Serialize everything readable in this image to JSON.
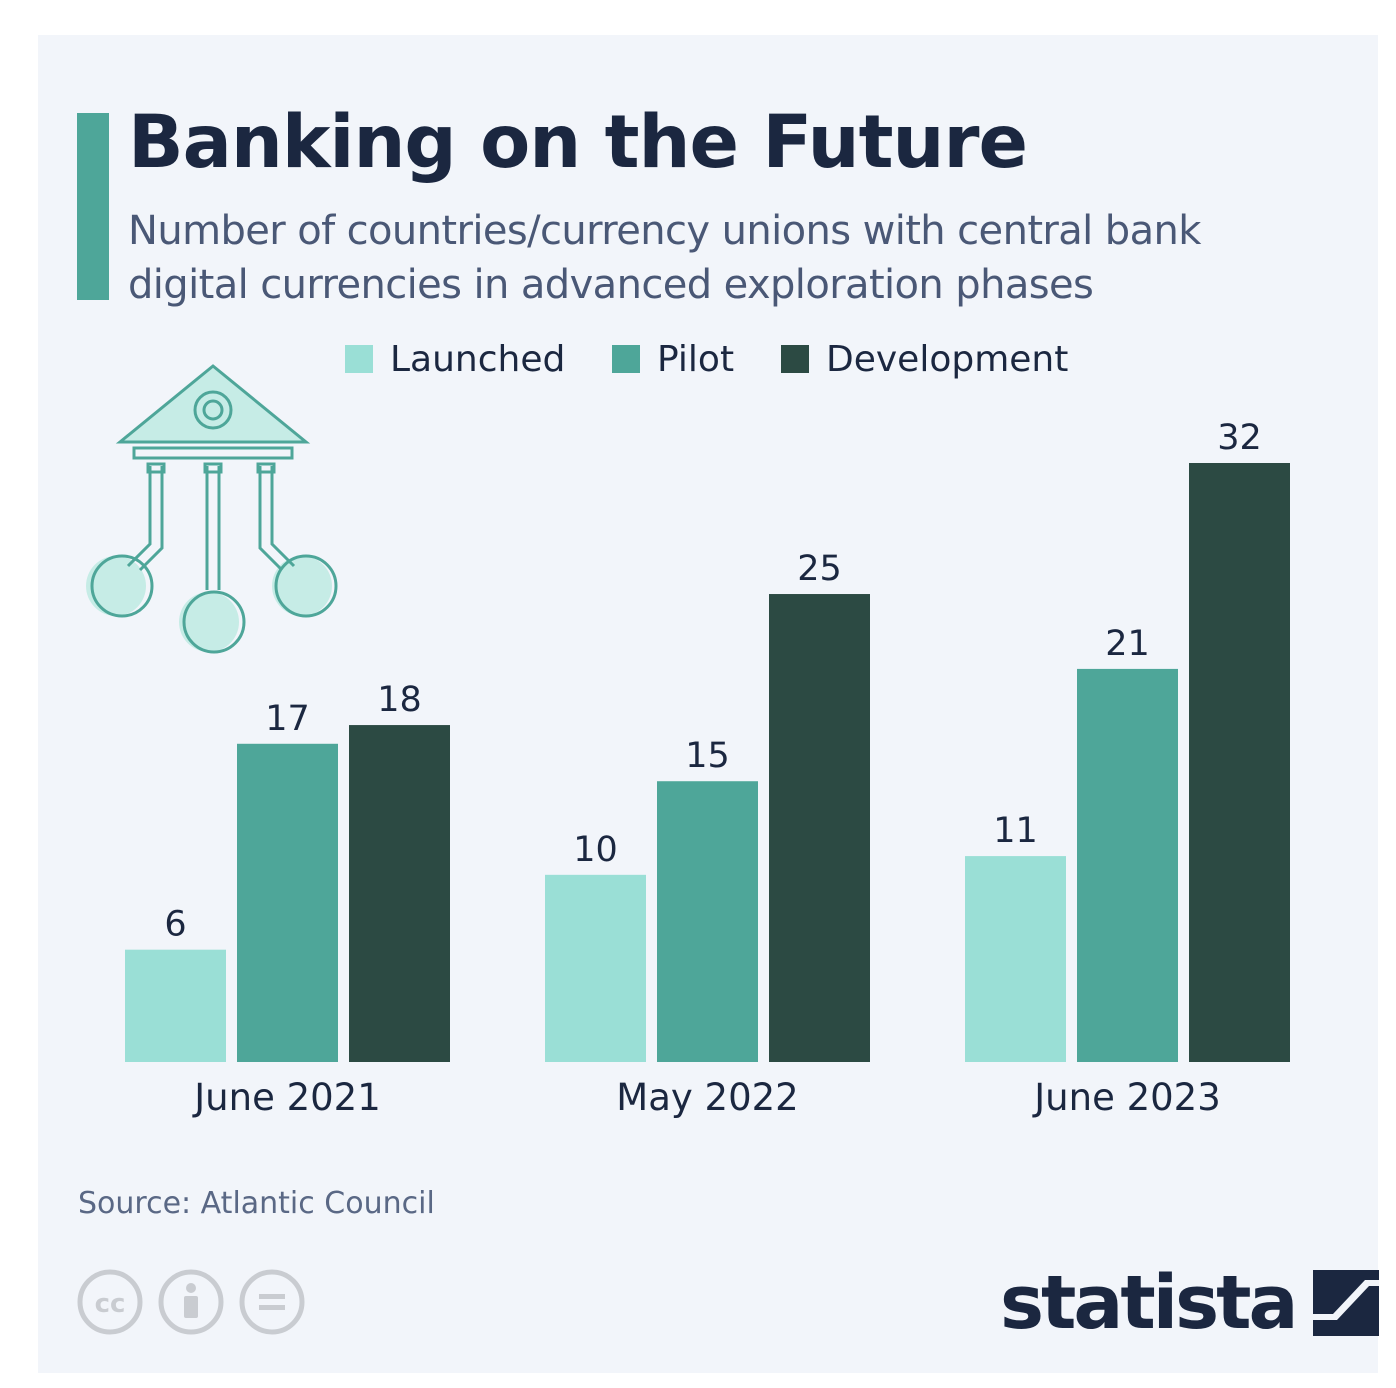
{
  "colors": {
    "launched": "#9adfd6",
    "pilot": "#4ea699",
    "development": "#2c4a43",
    "title": "#1b2740",
    "subtitle": "#4a5876",
    "text": "#1b2740",
    "source": "#5a6885",
    "icon_gray": "#c9ccd1",
    "accent": "#4ea699"
  },
  "header": {
    "title": "Banking on the Future",
    "subtitle_line1": "Number of countries/currency unions with central bank",
    "subtitle_line2": "digital currencies in advanced exploration phases"
  },
  "legend": [
    "Launched",
    "Pilot",
    "Development"
  ],
  "chart_data": {
    "type": "bar",
    "title": "Banking on the Future",
    "subtitle": "Number of countries/currency unions with central bank digital currencies in advanced exploration phases",
    "categories": [
      "June 2021",
      "May 2022",
      "June 2023"
    ],
    "series": [
      {
        "name": "Launched",
        "values": [
          6,
          10,
          11
        ]
      },
      {
        "name": "Pilot",
        "values": [
          17,
          15,
          21
        ]
      },
      {
        "name": "Development",
        "values": [
          18,
          25,
          32
        ]
      }
    ],
    "ylim": [
      0,
      32
    ],
    "grid": false,
    "legend_position": "top-center"
  },
  "footer": {
    "source": "Source: Atlantic Council",
    "logo": "statista",
    "license_icons": [
      "cc-icon",
      "attribution-icon",
      "no-derivatives-icon"
    ]
  },
  "decoration": {
    "icon": "bank-building-circuit-icon"
  }
}
